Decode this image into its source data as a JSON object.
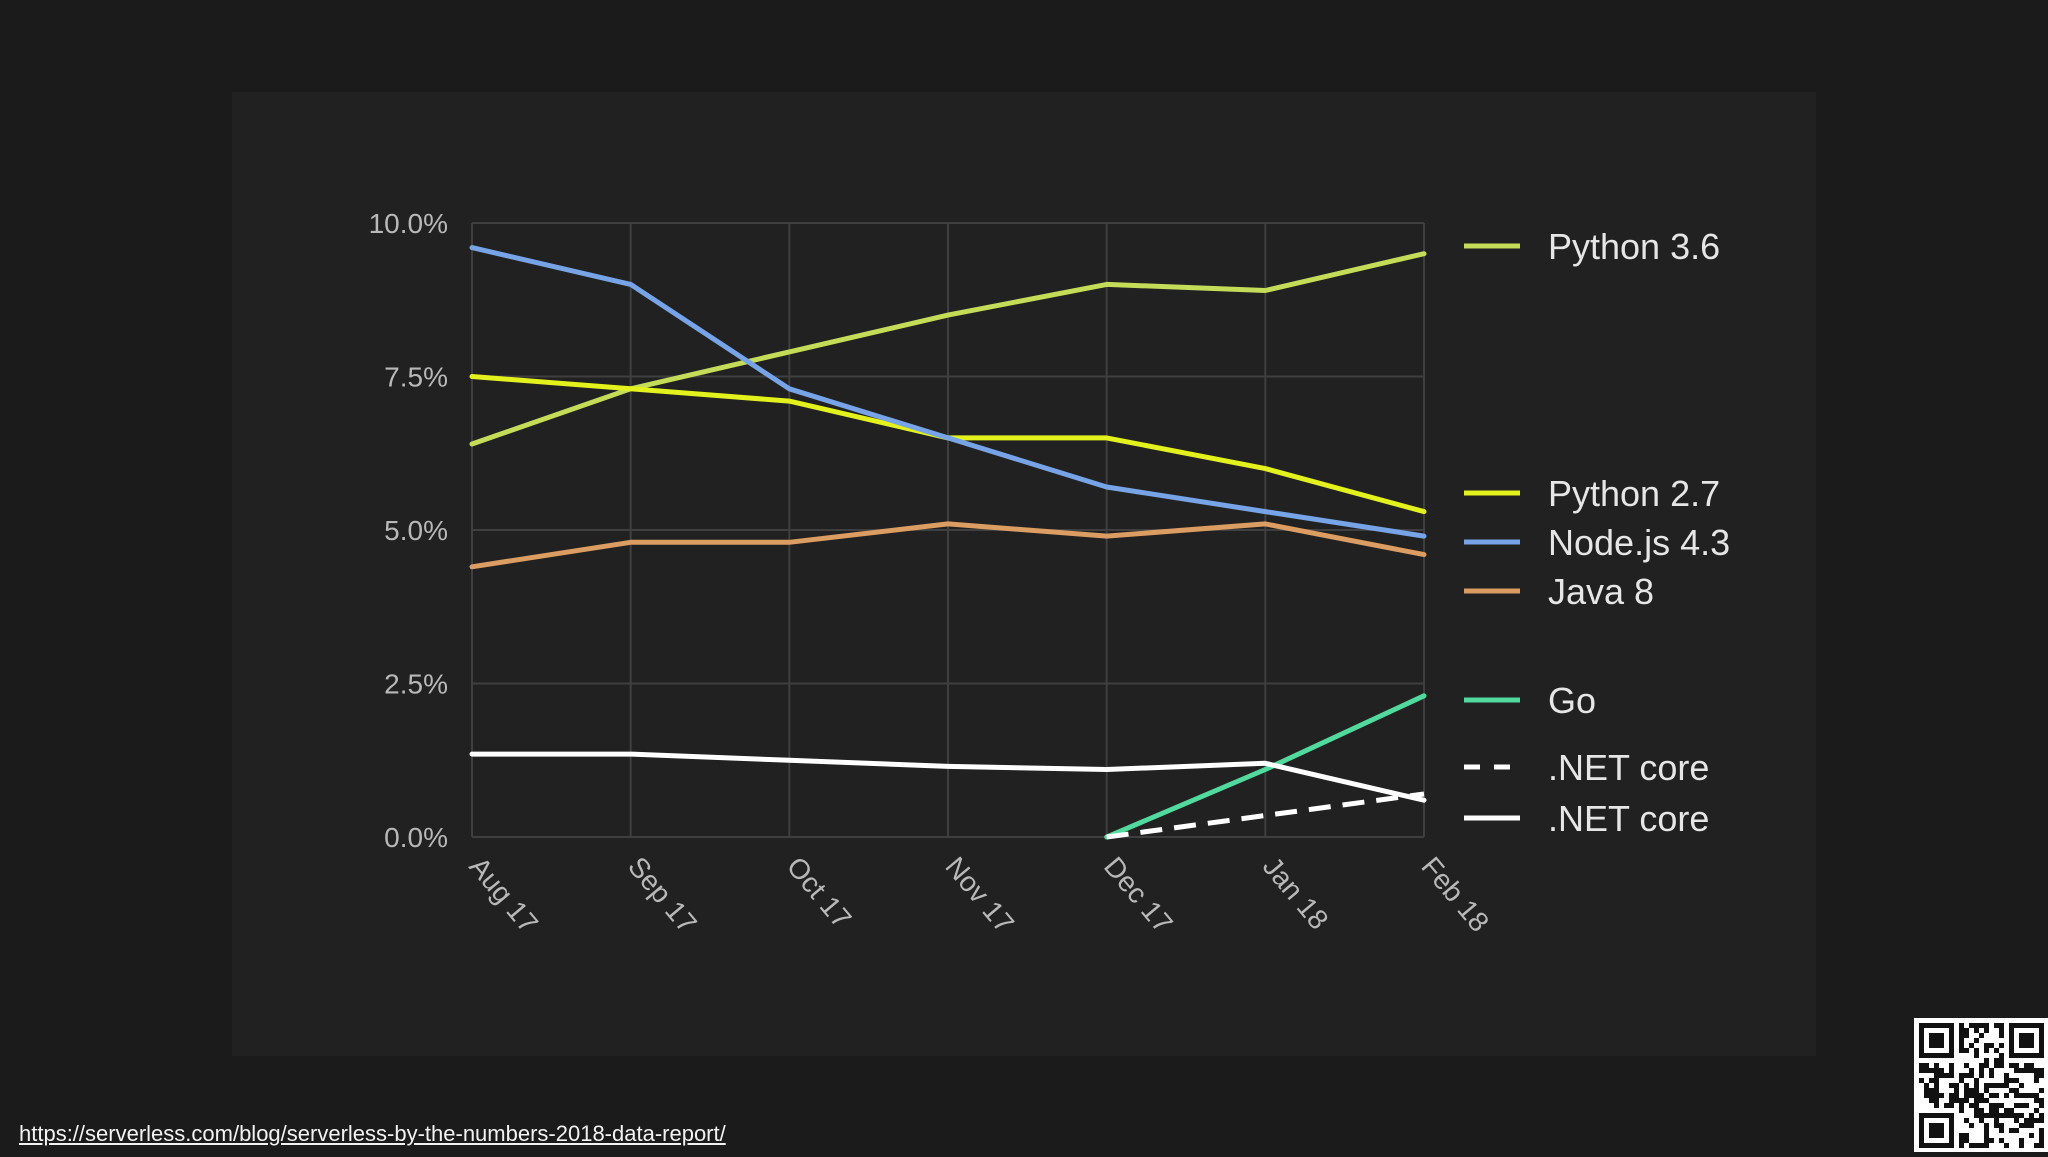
{
  "chart_data": {
    "type": "line",
    "x": [
      "Aug 17",
      "Sep 17",
      "Oct 17",
      "Nov 17",
      "Dec 17",
      "Jan 18",
      "Feb 18"
    ],
    "y_ticks": [
      "0.0%",
      "2.5%",
      "5.0%",
      "7.5%",
      "10.0%"
    ],
    "ylim": [
      0,
      10
    ],
    "grid": true,
    "legend_position": "right",
    "series": [
      {
        "name": "Python 3.6",
        "color": "#c5dc59",
        "dash": false,
        "values": [
          6.4,
          7.3,
          7.9,
          8.5,
          9.0,
          8.9,
          9.5
        ]
      },
      {
        "name": "Python 2.7",
        "color": "#e3f21d",
        "dash": false,
        "values": [
          7.5,
          7.3,
          7.1,
          6.5,
          6.5,
          6.0,
          5.3
        ]
      },
      {
        "name": "Node.js 4.3",
        "color": "#76a4e6",
        "dash": false,
        "values": [
          9.6,
          9.0,
          7.3,
          6.5,
          5.7,
          5.3,
          4.9
        ]
      },
      {
        "name": "Java 8",
        "color": "#dc9d62",
        "dash": false,
        "values": [
          4.4,
          4.8,
          4.8,
          5.1,
          4.9,
          5.1,
          4.6
        ]
      },
      {
        "name": "Go",
        "color": "#52d99e",
        "dash": false,
        "values": [
          null,
          null,
          null,
          null,
          0.0,
          1.1,
          2.3
        ]
      },
      {
        "name": ".NET core",
        "color": "#ffffff",
        "dash": true,
        "values": [
          null,
          null,
          null,
          null,
          0.0,
          0.35,
          0.7
        ]
      },
      {
        "name": ".NET core",
        "color": "#ffffff",
        "dash": false,
        "values": [
          1.35,
          1.35,
          1.25,
          1.15,
          1.1,
          1.2,
          0.6
        ]
      }
    ]
  },
  "footer": {
    "link_text": "https://serverless.com/blog/serverless-by-the-numbers-2018-data-report/"
  },
  "icons": {
    "qr": "qr-code-icon"
  }
}
